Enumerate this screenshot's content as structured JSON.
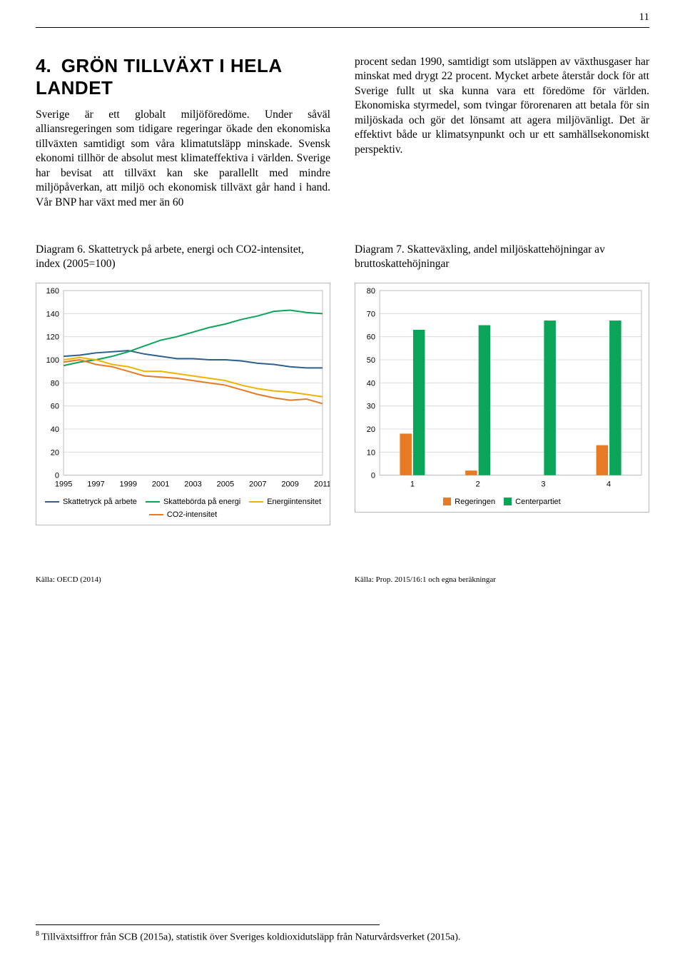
{
  "page_number": "11",
  "heading": {
    "number": "4.",
    "title": "GRÖN TILLVÄXT I HELA LANDET"
  },
  "paragraph_left": "Sverige är ett globalt miljöföredöme. Under såväl alliansregeringen som tidigare regeringar ökade den ekonomiska tillväxten samtidigt som våra klimatutsläpp minskade. Svensk ekonomi tillhör de absolut mest klimateffektiva i världen. Sverige har bevisat att tillväxt kan ske parallellt med mindre miljöpåverkan, att miljö och ekonomisk tillväxt går hand i hand. Vår BNP har växt med mer än 60",
  "paragraph_right": "procent sedan 1990, samtidigt som utsläppen av växthusgaser har minskat med drygt 22 procent. Mycket arbete återstår dock för att Sverige fullt ut ska kunna vara ett föredöme för världen. Ekonomiska styrmedel, som tvingar förorenaren att betala för sin miljöskada och gör det lönsamt att agera miljövänligt. Det är effektivt både ur klimatsynpunkt och ur ett samhällsekonomiskt perspektiv.",
  "diagram6": {
    "caption": "Diagram 6. Skattetryck på arbete, energi och CO2-intensitet, index (2005=100)",
    "type": "line",
    "xlim": [
      1995,
      2011
    ],
    "ylim": [
      0,
      160
    ],
    "xticks": [
      1995,
      1997,
      1999,
      2001,
      2003,
      2005,
      2007,
      2009,
      2011
    ],
    "yticks": [
      0,
      20,
      40,
      60,
      80,
      100,
      120,
      140,
      160
    ],
    "background_color": "#ffffff",
    "grid_color": "#dcdcdc",
    "tick_font_size": 11,
    "series": [
      {
        "name": "Skattetryck på arbete",
        "color": "#2f5f8f",
        "width": 2,
        "x": [
          1995,
          1996,
          1997,
          1998,
          1999,
          2000,
          2001,
          2002,
          2003,
          2004,
          2005,
          2006,
          2007,
          2008,
          2009,
          2010,
          2011
        ],
        "y": [
          103,
          104,
          106,
          107,
          108,
          105,
          103,
          101,
          101,
          100,
          100,
          99,
          97,
          96,
          94,
          93,
          93
        ]
      },
      {
        "name": "Skattebörda på energi",
        "color": "#0aa558",
        "width": 2,
        "x": [
          1995,
          1996,
          1997,
          1998,
          1999,
          2000,
          2001,
          2002,
          2003,
          2004,
          2005,
          2006,
          2007,
          2008,
          2009,
          2010,
          2011
        ],
        "y": [
          95,
          98,
          100,
          103,
          107,
          112,
          117,
          120,
          124,
          128,
          131,
          135,
          138,
          142,
          143,
          141,
          140
        ]
      },
      {
        "name": "Energiintensitet",
        "color": "#f0b400",
        "width": 2,
        "x": [
          1995,
          1996,
          1997,
          1998,
          1999,
          2000,
          2001,
          2002,
          2003,
          2004,
          2005,
          2006,
          2007,
          2008,
          2009,
          2010,
          2011
        ],
        "y": [
          100,
          102,
          100,
          96,
          94,
          90,
          90,
          88,
          86,
          84,
          82,
          78,
          75,
          73,
          72,
          70,
          68
        ]
      },
      {
        "name": "CO2-intensitet",
        "color": "#e87a24",
        "width": 2,
        "x": [
          1995,
          1996,
          1997,
          1998,
          1999,
          2000,
          2001,
          2002,
          2003,
          2004,
          2005,
          2006,
          2007,
          2008,
          2009,
          2010,
          2011
        ],
        "y": [
          98,
          100,
          96,
          94,
          90,
          86,
          85,
          84,
          82,
          80,
          78,
          74,
          70,
          67,
          65,
          66,
          62
        ]
      }
    ]
  },
  "diagram7": {
    "caption": "Diagram 7. Skatteväxling, andel miljöskattehöjningar av bruttoskattehöjningar",
    "type": "bar",
    "xlim": [
      0.5,
      4.5
    ],
    "ylim": [
      0,
      80
    ],
    "categories": [
      "1",
      "2",
      "3",
      "4"
    ],
    "yticks": [
      0,
      10,
      20,
      30,
      40,
      50,
      60,
      70,
      80
    ],
    "background_color": "#ffffff",
    "grid_color": "#dcdcdc",
    "tick_font_size": 11,
    "bar_width": 0.36,
    "series": [
      {
        "name": "Regeringen",
        "color": "#e87a24",
        "values": [
          18,
          2,
          0,
          13
        ]
      },
      {
        "name": "Centerpartiet",
        "color": "#0aa558",
        "values": [
          63,
          65,
          67,
          67
        ]
      }
    ]
  },
  "source_left": "Källa: OECD (2014)",
  "source_right": "Källa: Prop. 2015/16:1 och egna beräkningar",
  "footnote": "Tillväxtsiffror från SCB (2015a), statistik över Sveriges koldioxidutsläpp från Naturvårdsverket (2015a).",
  "footnote_marker": "8"
}
